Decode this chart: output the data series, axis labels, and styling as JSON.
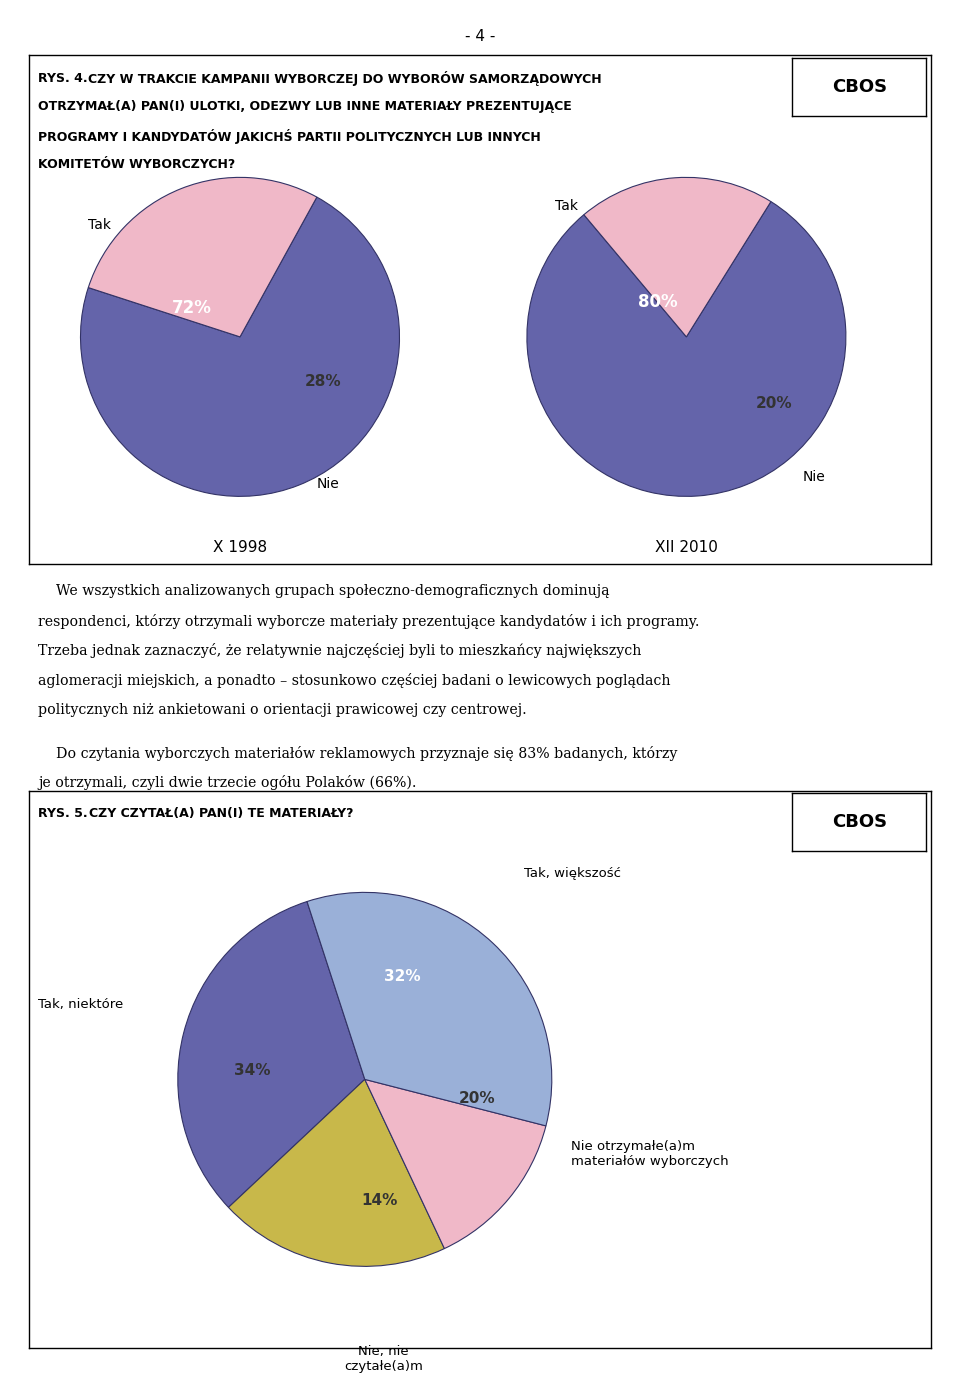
{
  "page_number": "- 4 -",
  "background_color": "#ffffff",
  "section1": {
    "cbos_label": "CBOS",
    "title_prefix": "RYS. 4.",
    "title_lines": [
      "CZY W TRAKCIE KAMPANII WYBORCZEJ DO WYBORÓW SAMORZĄDOWYCH",
      "OTRZYMAŁ(A) PAN(I) ULOTKI, ODEZWY LUB INNE MATERIAŁY PREZENTUJĄCE",
      "PROGRAMY I KANDYDATÓW JAKICHŚ PARTII POLITYCZNYCH LUB INNYCH",
      "KOMITETÓW WYBORCZYCH?"
    ],
    "pie1": {
      "values": [
        72,
        28
      ],
      "colors": [
        "#6464aa",
        "#f0b8c8"
      ],
      "pct_labels": [
        "72%",
        "28%"
      ],
      "slice_labels": [
        "Tak",
        "Nie"
      ],
      "subtitle": "X 1998",
      "startangle": 162
    },
    "pie2": {
      "values": [
        80,
        20
      ],
      "colors": [
        "#6464aa",
        "#f0b8c8"
      ],
      "pct_labels": [
        "80%",
        "20%"
      ],
      "slice_labels": [
        "Tak",
        "Nie"
      ],
      "subtitle": "XII 2010",
      "startangle": 130
    }
  },
  "para1_lines": [
    "    We wszystkich analizowanych grupach społeczno-demograficznych dominują",
    "respondenci, którzy otrzymali wyborcze materiały prezentujące kandydatów i ich programy.",
    "Trzeba jednak zaznaczyć, że relatywnie najczęściej byli to mieszkańcy największych",
    "aglomeracji miejskich, a ponadto – stosunkowo częściej badani o lewicowych poglądach",
    "politycznych niż ankietowani o orientacji prawicowej czy centrowej."
  ],
  "para2_lines": [
    "    Do czytania wyborczych materiałów reklamowych przyznaje się 83% badanych, którzy",
    "je otrzymali, czyli dwie trzecie ogółu Polaków (66%)."
  ],
  "section2": {
    "cbos_label": "CBOS",
    "title_prefix": "RYS. 5.",
    "title_text": "CZY CZYTAŁ(A) PAN(I) TE MATERIAŁY?",
    "pie": {
      "values": [
        32,
        20,
        14,
        34
      ],
      "colors": [
        "#6464aa",
        "#c8b84a",
        "#f0b8c8",
        "#9ab0d8"
      ],
      "pct_labels": [
        "32%",
        "20%",
        "14%",
        "34%"
      ],
      "ext_labels": [
        "Tak, większość",
        "Nie otrzymałe(a)m\nmateriałów wyborczych",
        "Nie, nie\nczytałe(a)m",
        "Tak, niektóre"
      ],
      "startangle": 108
    }
  }
}
